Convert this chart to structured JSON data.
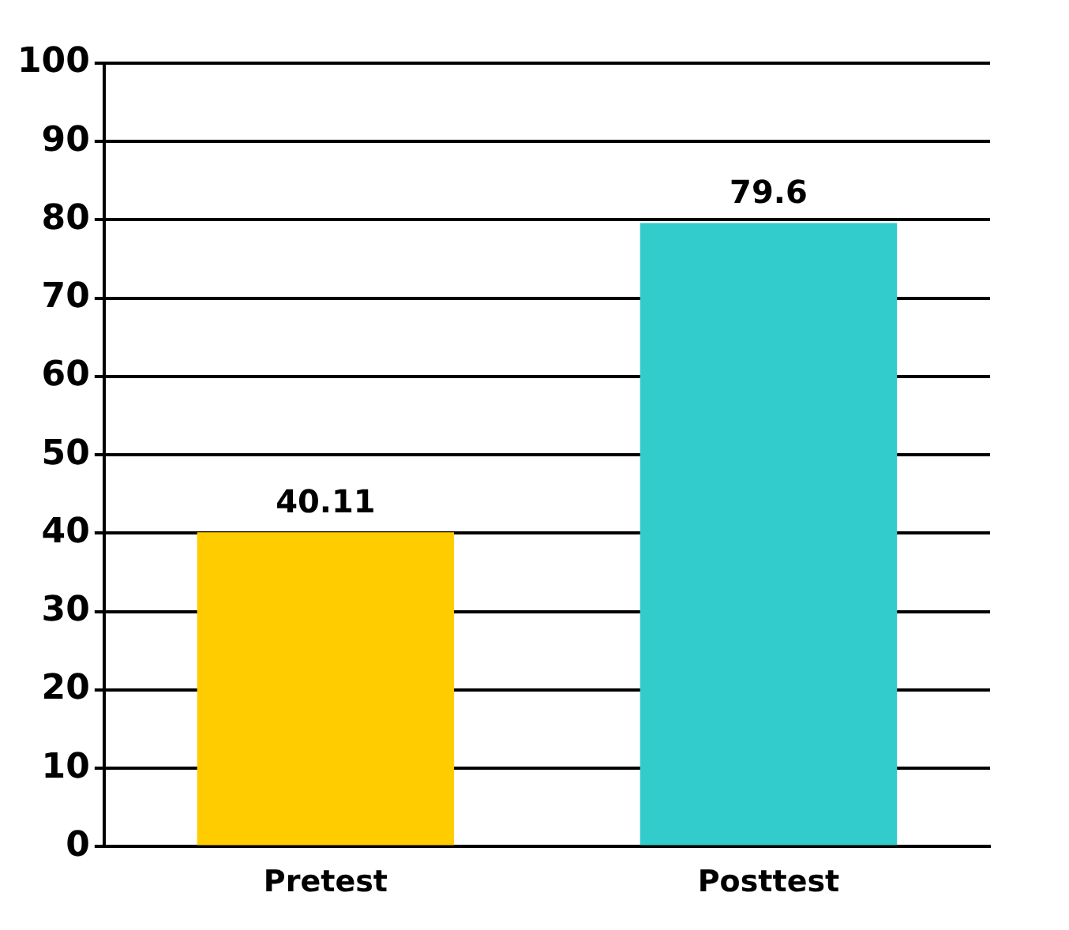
{
  "chart_data": {
    "type": "bar",
    "categories": [
      "Pretest",
      "Posttest"
    ],
    "values": [
      40.11,
      79.6
    ],
    "colors": [
      "#ffcc00",
      "#33cccc"
    ],
    "ylim": [
      0,
      100
    ],
    "yticks": [
      0,
      10,
      20,
      30,
      40,
      50,
      60,
      70,
      80,
      90,
      100
    ],
    "grid": "y",
    "legend": false,
    "data_labels": true
  }
}
